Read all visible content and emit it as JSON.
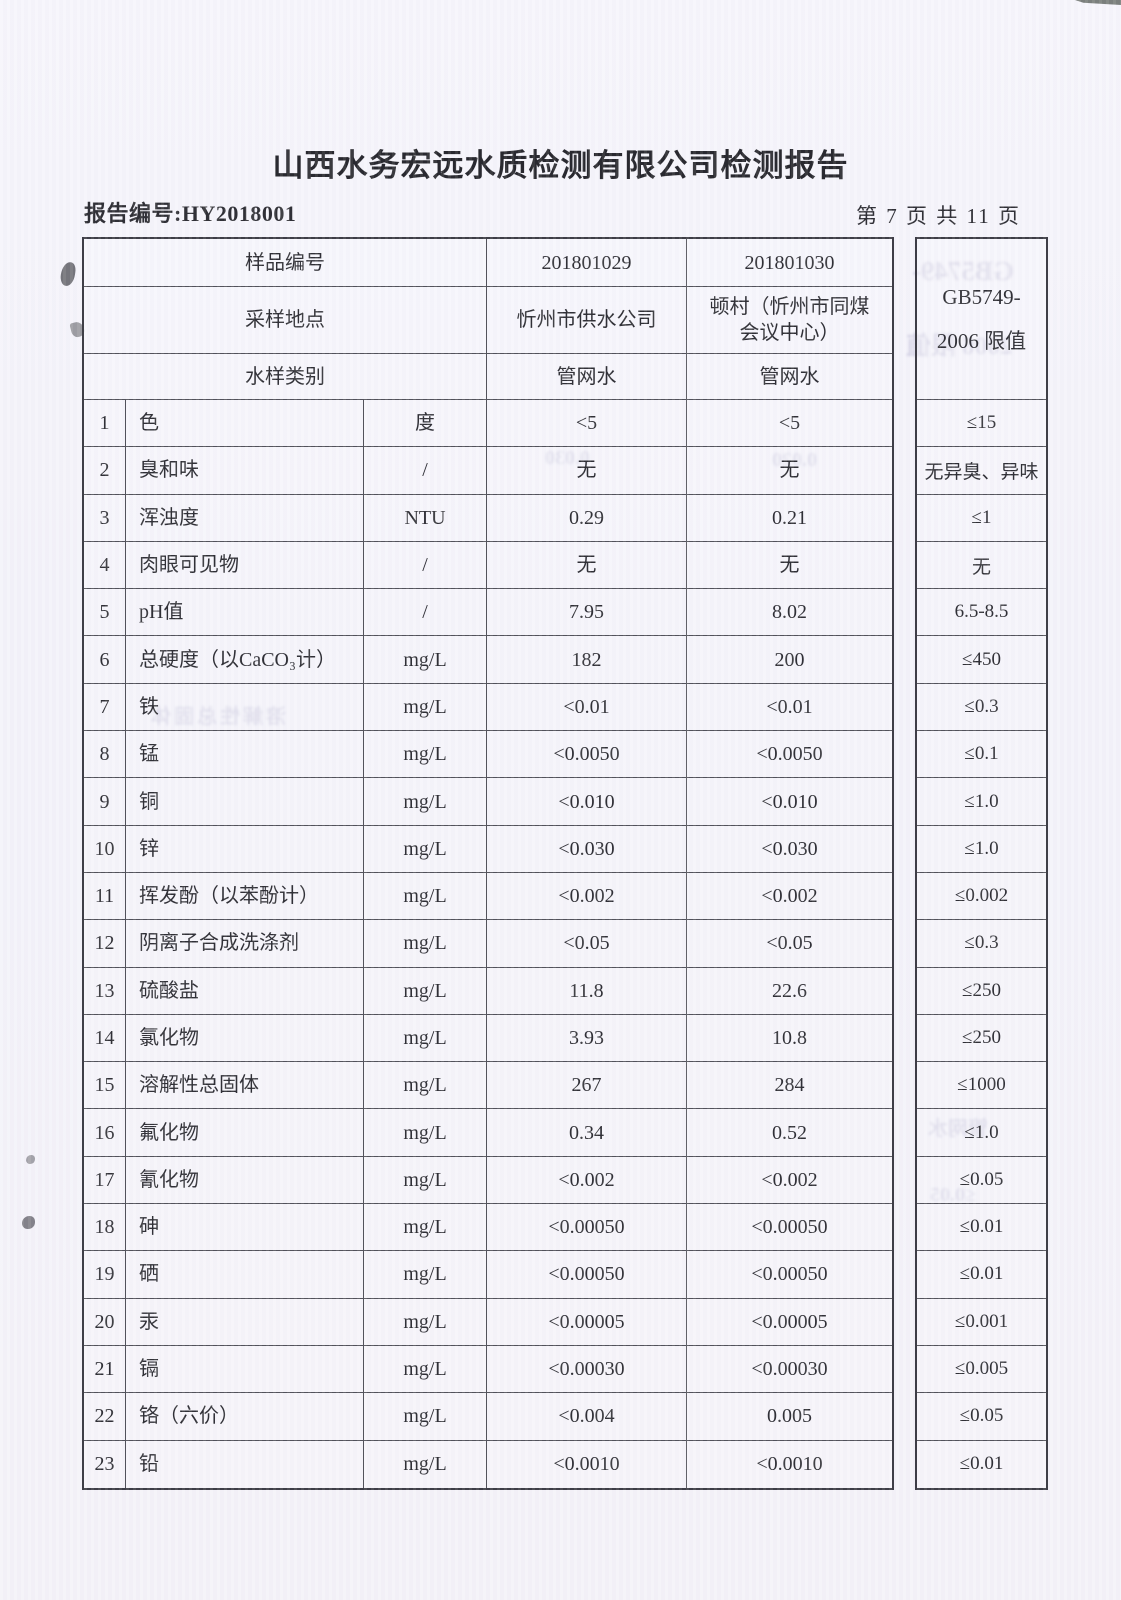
{
  "page": {
    "title": "山西水务宏远水质检测有限公司检测报告",
    "report_no": "报告编号:HY2018001",
    "page_indicator": "第 7 页 共 11 页"
  },
  "table": {
    "header": {
      "sample_id_label": "样品编号",
      "sample_id_1": "201801029",
      "sample_id_2": "201801030",
      "location_label": "采样地点",
      "location_1": "忻州市供水公司",
      "location_2": "顿村（忻州市同煤会议中心）",
      "type_label": "水样类别",
      "type_1": "管网水",
      "type_2": "管网水",
      "limit_line1": "GB5749-",
      "limit_line2": "2006 限值"
    },
    "rows": [
      {
        "no": "1",
        "name": "色",
        "unit": "度",
        "v1": "<5",
        "v2": "<5",
        "limit": "≤15"
      },
      {
        "no": "2",
        "name": "臭和味",
        "unit": "/",
        "v1": "无",
        "v2": "无",
        "limit": "无异臭、异味"
      },
      {
        "no": "3",
        "name": "浑浊度",
        "unit": "NTU",
        "v1": "0.29",
        "v2": "0.21",
        "limit": "≤1"
      },
      {
        "no": "4",
        "name": "肉眼可见物",
        "unit": "/",
        "v1": "无",
        "v2": "无",
        "limit": "无"
      },
      {
        "no": "5",
        "name": "pH值",
        "unit": "/",
        "v1": "7.95",
        "v2": "8.02",
        "limit": "6.5-8.5"
      },
      {
        "no": "6",
        "name": "总硬度（以CaCO₃计）",
        "unit": "mg/L",
        "v1": "182",
        "v2": "200",
        "limit": "≤450"
      },
      {
        "no": "7",
        "name": "铁",
        "unit": "mg/L",
        "v1": "<0.01",
        "v2": "<0.01",
        "limit": "≤0.3"
      },
      {
        "no": "8",
        "name": "锰",
        "unit": "mg/L",
        "v1": "<0.0050",
        "v2": "<0.0050",
        "limit": "≤0.1"
      },
      {
        "no": "9",
        "name": "铜",
        "unit": "mg/L",
        "v1": "<0.010",
        "v2": "<0.010",
        "limit": "≤1.0"
      },
      {
        "no": "10",
        "name": "锌",
        "unit": "mg/L",
        "v1": "<0.030",
        "v2": "<0.030",
        "limit": "≤1.0"
      },
      {
        "no": "11",
        "name": "挥发酚（以苯酚计）",
        "unit": "mg/L",
        "v1": "<0.002",
        "v2": "<0.002",
        "limit": "≤0.002"
      },
      {
        "no": "12",
        "name": "阴离子合成洗涤剂",
        "unit": "mg/L",
        "v1": "<0.05",
        "v2": "<0.05",
        "limit": "≤0.3"
      },
      {
        "no": "13",
        "name": "硫酸盐",
        "unit": "mg/L",
        "v1": "11.8",
        "v2": "22.6",
        "limit": "≤250"
      },
      {
        "no": "14",
        "name": "氯化物",
        "unit": "mg/L",
        "v1": "3.93",
        "v2": "10.8",
        "limit": "≤250"
      },
      {
        "no": "15",
        "name": "溶解性总固体",
        "unit": "mg/L",
        "v1": "267",
        "v2": "284",
        "limit": "≤1000"
      },
      {
        "no": "16",
        "name": "氟化物",
        "unit": "mg/L",
        "v1": "0.34",
        "v2": "0.52",
        "limit": "≤1.0"
      },
      {
        "no": "17",
        "name": "氰化物",
        "unit": "mg/L",
        "v1": "<0.002",
        "v2": "<0.002",
        "limit": "≤0.05"
      },
      {
        "no": "18",
        "name": "砷",
        "unit": "mg/L",
        "v1": "<0.00050",
        "v2": "<0.00050",
        "limit": "≤0.01"
      },
      {
        "no": "19",
        "name": "硒",
        "unit": "mg/L",
        "v1": "<0.00050",
        "v2": "<0.00050",
        "limit": "≤0.01"
      },
      {
        "no": "20",
        "name": "汞",
        "unit": "mg/L",
        "v1": "<0.00005",
        "v2": "<0.00005",
        "limit": "≤0.001"
      },
      {
        "no": "21",
        "name": "镉",
        "unit": "mg/L",
        "v1": "<0.00030",
        "v2": "<0.00030",
        "limit": "≤0.005"
      },
      {
        "no": "22",
        "name": "铬（六价）",
        "unit": "mg/L",
        "v1": "<0.004",
        "v2": "0.005",
        "limit": "≤0.05"
      },
      {
        "no": "23",
        "name": "铅",
        "unit": "mg/L",
        "v1": "<0.0010",
        "v2": "<0.0010",
        "limit": "≤0.01"
      }
    ]
  },
  "scan_artifacts": {
    "ghosts": [
      {
        "text": "GB5749-"
      },
      {
        "text": "2006 限值"
      },
      {
        "text": "0.030"
      },
      {
        "text": "0.020"
      },
      {
        "text": "溶解性总固体"
      },
      {
        "text": "管网水"
      },
      {
        "text": "≤0.05"
      }
    ]
  }
}
